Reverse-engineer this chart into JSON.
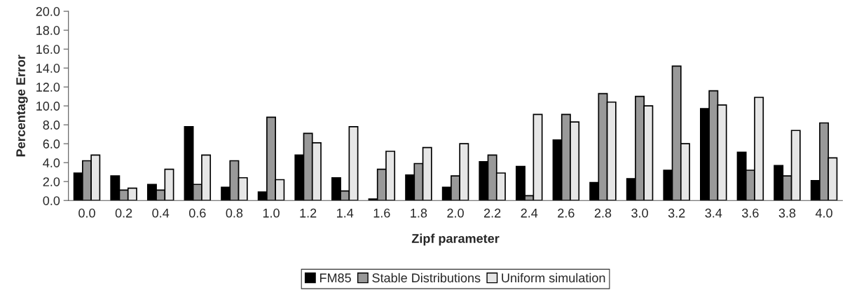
{
  "chart_data": {
    "type": "bar",
    "xlabel": "Zipf parameter",
    "ylabel": "Percentage Error",
    "categories": [
      "0.0",
      "0.2",
      "0.4",
      "0.6",
      "0.8",
      "1.0",
      "1.2",
      "1.4",
      "1.6",
      "1.8",
      "2.0",
      "2.2",
      "2.4",
      "2.6",
      "2.8",
      "3.0",
      "3.2",
      "3.4",
      "3.6",
      "3.8",
      "4.0"
    ],
    "series": [
      {
        "name": "FM85",
        "color": "#000000",
        "values": [
          2.9,
          2.6,
          1.7,
          7.8,
          1.4,
          0.9,
          4.8,
          2.4,
          0.15,
          2.7,
          1.4,
          4.1,
          3.6,
          6.4,
          1.9,
          2.3,
          3.2,
          9.7,
          5.1,
          3.7,
          2.1
        ]
      },
      {
        "name": "Stable Distributions",
        "color": "#999999",
        "values": [
          4.2,
          1.1,
          1.1,
          1.7,
          4.2,
          8.8,
          7.1,
          1.0,
          3.3,
          3.9,
          2.6,
          4.8,
          0.5,
          9.1,
          11.3,
          11.0,
          14.2,
          11.6,
          3.2,
          2.6,
          8.2
        ]
      },
      {
        "name": "Uniform simulation",
        "color": "#e6e6e6",
        "values": [
          4.8,
          1.3,
          3.3,
          4.8,
          2.4,
          2.2,
          6.1,
          7.8,
          5.2,
          5.6,
          6.0,
          2.9,
          9.1,
          8.3,
          10.4,
          10.0,
          6.0,
          10.1,
          10.9,
          7.4,
          4.5
        ]
      }
    ],
    "ylim": [
      0,
      20
    ],
    "yticks": [
      {
        "value": 0,
        "label": "0.0"
      },
      {
        "value": 2,
        "label": "2.0"
      },
      {
        "value": 4,
        "label": "4.0"
      },
      {
        "value": 6,
        "label": "6.0"
      },
      {
        "value": 8,
        "label": "8.0"
      },
      {
        "value": 10,
        "label": "10.0"
      },
      {
        "value": 12,
        "label": "12.0"
      },
      {
        "value": 14,
        "label": "14.0"
      },
      {
        "value": 16,
        "label": "16.0"
      },
      {
        "value": 18,
        "label": "18.0"
      },
      {
        "value": 20,
        "label": "20.0"
      }
    ],
    "grid": false,
    "legend": "bottom"
  }
}
